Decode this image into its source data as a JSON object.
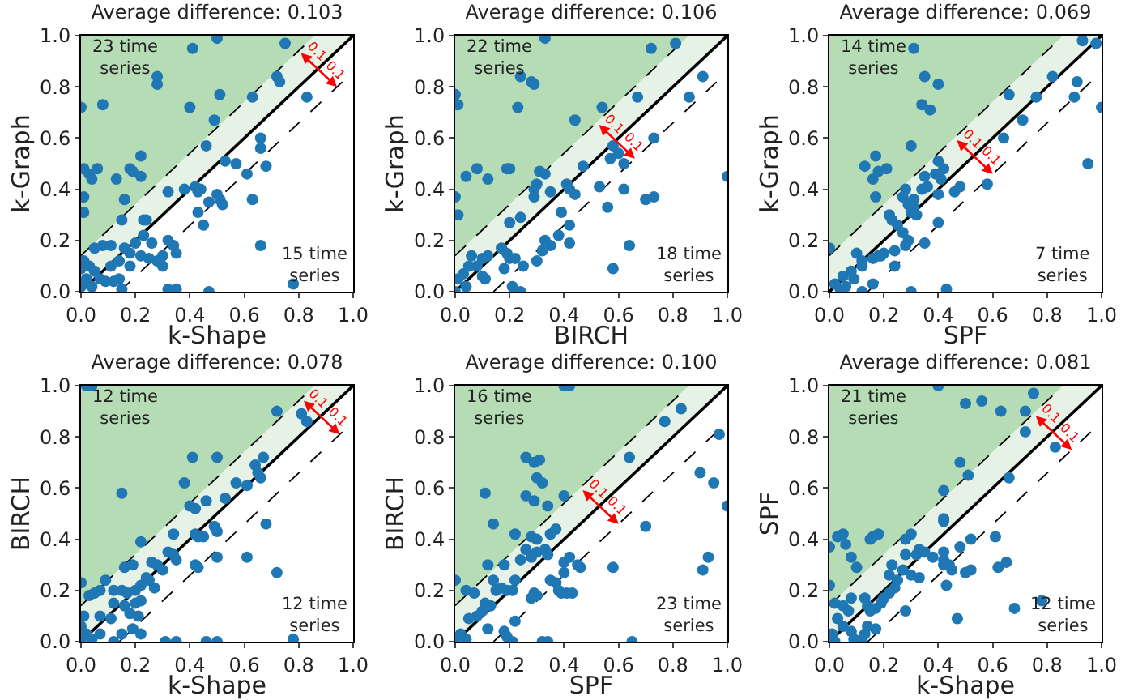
{
  "chart_data": [
    {
      "type": "scatter",
      "title": "Average difference: 0.103",
      "xlabel": "k-Shape",
      "ylabel": "k-Graph",
      "xlim": [
        0,
        1
      ],
      "ylim": [
        0,
        1
      ],
      "xticks": [
        {
          "value": 0,
          "label": "0.0"
        },
        {
          "value": 0.2,
          "label": "0.2"
        },
        {
          "value": 0.4,
          "label": "0.4"
        },
        {
          "value": 0.6,
          "label": "0.6"
        },
        {
          "value": 0.8,
          "label": "0.8"
        },
        {
          "value": 1,
          "label": "1.0"
        }
      ],
      "yticks": [
        {
          "value": 0,
          "label": "0.0"
        },
        {
          "value": 0.2,
          "label": "0.2"
        },
        {
          "value": 0.4,
          "label": "0.4"
        },
        {
          "value": 0.6,
          "label": "0.6"
        },
        {
          "value": 0.8,
          "label": "0.8"
        },
        {
          "value": 1,
          "label": "1.0"
        }
      ],
      "grid": false,
      "annotations": [
        "23 time\nseries",
        "15 time\nseries",
        {
          "text": "0.1",
          "x": 0.87,
          "y": 0.87
        },
        "0.1"
      ],
      "series": [
        {
          "type": "line",
          "color": "#000000",
          "line_style": "dashed",
          "marker": "none",
          "x": [
            0,
            0.859
          ],
          "values": [
            0.141,
            1
          ]
        },
        {
          "type": "line",
          "color": "#000000",
          "line_style": "dashed",
          "marker": "none",
          "x": [
            0.141,
            1
          ],
          "values": [
            0,
            0.859
          ]
        },
        {
          "type": "line",
          "color": "#000000",
          "line_style": "solid",
          "marker": "none",
          "x": [
            0,
            1
          ],
          "values": [
            0,
            1
          ]
        },
        {
          "type": "scatter",
          "color": "#1f77b4",
          "marker": "circle",
          "x": [
            0.5,
            0.75,
            0.41,
            0.28,
            0.28,
            0.72,
            0.73,
            0.83,
            0.51,
            0.63,
            0.0,
            0.08,
            0.4,
            0.49,
            0.66,
            0.46,
            0.22,
            0.66,
            0.57,
            0.53,
            0.68,
            0.61,
            0.01,
            0.06,
            0.03,
            0.04,
            0.13,
            0.18,
            0.19,
            0.22,
            0.01,
            0.16,
            0.32,
            0.38,
            0.42,
            0.44,
            0.43,
            0.5,
            0.51,
            0.47,
            0.52,
            0.63,
            0.43,
            0.45,
            0.01,
            0.15,
            0.23,
            0.24,
            0.23,
            0.32,
            0.34,
            0.35,
            0.3,
            0.25,
            0.2,
            0.05,
            0.08,
            0.11,
            0.16,
            0.18,
            0.22,
            0.26,
            0.28,
            0.3,
            0.14,
            0.18,
            0.01,
            0.03,
            0.05,
            0.07,
            0.02,
            0.0,
            0.04,
            0.09,
            0.12,
            0.15,
            0.11,
            0.66,
            0.78,
            0.32,
            0.35,
            0.47,
            0.14,
            0.0
          ],
          "values": [
            0.99,
            0.97,
            0.95,
            0.84,
            0.81,
            0.84,
            0.82,
            0.76,
            0.77,
            0.76,
            0.72,
            0.73,
            0.72,
            0.67,
            0.6,
            0.57,
            0.53,
            0.56,
            0.5,
            0.51,
            0.49,
            0.46,
            0.48,
            0.48,
            0.46,
            0.44,
            0.44,
            0.48,
            0.47,
            0.45,
            0.37,
            0.36,
            0.39,
            0.4,
            0.41,
            0.4,
            0.39,
            0.38,
            0.36,
            0.35,
            0.34,
            0.36,
            0.31,
            0.26,
            0.31,
            0.28,
            0.28,
            0.28,
            0.22,
            0.2,
            0.18,
            0.15,
            0.14,
            0.13,
            0.19,
            0.17,
            0.18,
            0.18,
            0.17,
            0.15,
            0.14,
            0.19,
            0.12,
            0.1,
            0.12,
            0.1,
            0.12,
            0.1,
            0.08,
            0.05,
            0.05,
            0.02,
            0.02,
            0.04,
            0.04,
            0.01,
            0.1,
            0.18,
            0.03,
            0.01,
            0.01,
            0.0,
            0.05,
            0.09
          ]
        }
      ]
    },
    {
      "type": "scatter",
      "title": "Average difference: 0.106",
      "xlabel": "BIRCH",
      "ylabel": "k-Graph",
      "xlim": [
        0,
        1
      ],
      "ylim": [
        0,
        1
      ],
      "xticks": [
        {
          "value": 0,
          "label": "0.0"
        },
        {
          "value": 0.2,
          "label": "0.2"
        },
        {
          "value": 0.4,
          "label": "0.4"
        },
        {
          "value": 0.6,
          "label": "0.6"
        },
        {
          "value": 0.8,
          "label": "0.8"
        },
        {
          "value": 1,
          "label": "1.0"
        }
      ],
      "yticks": [
        {
          "value": 0,
          "label": "0.0"
        },
        {
          "value": 0.2,
          "label": "0.2"
        },
        {
          "value": 0.4,
          "label": "0.4"
        },
        {
          "value": 0.6,
          "label": "0.6"
        },
        {
          "value": 0.8,
          "label": "0.8"
        },
        {
          "value": 1,
          "label": "1.0"
        }
      ],
      "grid": false,
      "annotations": [
        "22 time\nseries",
        "18 time\nseries",
        {
          "text": "0.1",
          "x": 0.59,
          "y": 0.59
        },
        "0.1"
      ],
      "series": [
        {
          "type": "line",
          "color": "#000000",
          "line_style": "dashed",
          "marker": "none",
          "x": [
            0,
            0.859
          ],
          "values": [
            0.141,
            1
          ]
        },
        {
          "type": "line",
          "color": "#000000",
          "line_style": "dashed",
          "marker": "none",
          "x": [
            0.141,
            1
          ],
          "values": [
            0,
            0.859
          ]
        },
        {
          "type": "line",
          "color": "#000000",
          "line_style": "solid",
          "marker": "none",
          "x": [
            0,
            1
          ],
          "values": [
            0,
            1
          ]
        },
        {
          "type": "scatter",
          "color": "#1f77b4",
          "marker": "circle",
          "x": [
            0.33,
            0.81,
            0.72,
            0.24,
            0.28,
            0.29,
            0.91,
            0.86,
            0.67,
            0.0,
            0.01,
            0.23,
            0.54,
            0.44,
            0.58,
            0.73,
            0.6,
            0.62,
            0.57,
            0.47,
            0.08,
            0.19,
            0.2,
            0.04,
            0.12,
            0.31,
            0.33,
            0.3,
            0.29,
            0.29,
            0.35,
            0.41,
            0.42,
            0.44,
            0.53,
            0.56,
            0.62,
            0.7,
            0.73,
            1.0,
            0.0,
            0.01,
            0.39,
            0.42,
            0.38,
            0.42,
            0.64,
            0.2,
            0.24,
            0.33,
            0.35,
            0.32,
            0.3,
            0.25,
            0.17,
            0.19,
            0.2,
            0.22,
            0.18,
            0.06,
            0.1,
            0.12,
            0.05,
            0.03,
            0.01,
            0.1,
            0.11,
            0.04,
            0.0,
            0.21,
            0.24,
            0.58,
            0.08
          ],
          "values": [
            0.99,
            0.97,
            0.95,
            0.84,
            0.82,
            0.81,
            0.84,
            0.76,
            0.76,
            0.77,
            0.73,
            0.72,
            0.72,
            0.67,
            0.57,
            0.6,
            0.54,
            0.5,
            0.52,
            0.49,
            0.48,
            0.48,
            0.48,
            0.45,
            0.44,
            0.47,
            0.46,
            0.42,
            0.4,
            0.37,
            0.39,
            0.42,
            0.4,
            0.38,
            0.41,
            0.33,
            0.4,
            0.36,
            0.37,
            0.45,
            0.37,
            0.3,
            0.31,
            0.26,
            0.22,
            0.19,
            0.18,
            0.27,
            0.29,
            0.2,
            0.18,
            0.16,
            0.12,
            0.1,
            0.17,
            0.15,
            0.13,
            0.13,
            0.09,
            0.14,
            0.13,
            0.14,
            0.1,
            0.07,
            0.05,
            0.06,
            0.05,
            0.02,
            0.0,
            0.02,
            0.0,
            0.09,
            0.1
          ]
        }
      ]
    },
    {
      "type": "scatter",
      "title": "Average difference: 0.069",
      "xlabel": "SPF",
      "ylabel": "k-Graph",
      "xlim": [
        0,
        1
      ],
      "ylim": [
        0,
        1
      ],
      "xticks": [
        {
          "value": 0,
          "label": "0.0"
        },
        {
          "value": 0.2,
          "label": "0.2"
        },
        {
          "value": 0.4,
          "label": "0.4"
        },
        {
          "value": 0.6,
          "label": "0.6"
        },
        {
          "value": 0.8,
          "label": "0.8"
        },
        {
          "value": 1,
          "label": "1.0"
        }
      ],
      "yticks": [
        {
          "value": 0,
          "label": "0.0"
        },
        {
          "value": 0.2,
          "label": "0.2"
        },
        {
          "value": 0.4,
          "label": "0.4"
        },
        {
          "value": 0.6,
          "label": "0.6"
        },
        {
          "value": 0.8,
          "label": "0.8"
        },
        {
          "value": 1,
          "label": "1.0"
        }
      ],
      "grid": false,
      "annotations": [
        "14 time\nseries",
        "7 time\nseries",
        {
          "text": "0.1",
          "x": 0.53,
          "y": 0.53
        },
        "0.1"
      ],
      "series": [
        {
          "type": "line",
          "color": "#000000",
          "line_style": "dashed",
          "marker": "none",
          "x": [
            0,
            0.859
          ],
          "values": [
            0.141,
            1
          ]
        },
        {
          "type": "line",
          "color": "#000000",
          "line_style": "dashed",
          "marker": "none",
          "x": [
            0.141,
            1
          ],
          "values": [
            0,
            0.859
          ]
        },
        {
          "type": "line",
          "color": "#000000",
          "line_style": "solid",
          "marker": "none",
          "x": [
            0,
            1
          ],
          "values": [
            0,
            1
          ]
        },
        {
          "type": "scatter",
          "color": "#1f77b4",
          "marker": "circle",
          "x": [
            0.31,
            0.93,
            0.98,
            0.35,
            0.4,
            0.82,
            0.91,
            0.9,
            0.76,
            0.66,
            0.34,
            0.37,
            0.71,
            1.0,
            0.64,
            0.3,
            0.17,
            0.13,
            0.18,
            0.16,
            0.21,
            0.4,
            0.42,
            0.39,
            0.41,
            0.35,
            0.34,
            0.36,
            0.4,
            0.46,
            0.48,
            0.58,
            0.95,
            0.17,
            0.28,
            0.27,
            0.29,
            0.3,
            0.31,
            0.31,
            0.22,
            0.23,
            0.25,
            0.32,
            0.4,
            0.35,
            0.27,
            0.29,
            0.28,
            0.24,
            0.2,
            0.18,
            0.16,
            0.19,
            0.0,
            0.1,
            0.12,
            0.08,
            0.05,
            0.02,
            0.04,
            0.09,
            0.12,
            0.16,
            0.24,
            0.3,
            0.43,
            0.12,
            0.06
          ],
          "values": [
            0.95,
            0.98,
            0.97,
            0.84,
            0.81,
            0.84,
            0.82,
            0.76,
            0.76,
            0.77,
            0.73,
            0.71,
            0.67,
            0.72,
            0.6,
            0.57,
            0.53,
            0.49,
            0.47,
            0.44,
            0.48,
            0.51,
            0.48,
            0.46,
            0.44,
            0.45,
            0.4,
            0.41,
            0.38,
            0.39,
            0.41,
            0.42,
            0.5,
            0.37,
            0.4,
            0.37,
            0.34,
            0.31,
            0.33,
            0.36,
            0.3,
            0.28,
            0.26,
            0.3,
            0.27,
            0.19,
            0.23,
            0.2,
            0.18,
            0.16,
            0.15,
            0.14,
            0.13,
            0.14,
            0.17,
            0.15,
            0.12,
            0.08,
            0.06,
            0.03,
            0.01,
            0.05,
            0.1,
            0.03,
            0.1,
            0.0,
            0.01,
            0.0,
            0.02
          ]
        }
      ]
    },
    {
      "type": "scatter",
      "title": "Average difference: 0.078",
      "xlabel": "k-Shape",
      "ylabel": "BIRCH",
      "xlim": [
        0,
        1
      ],
      "ylim": [
        0,
        1
      ],
      "xticks": [
        {
          "value": 0,
          "label": "0.0"
        },
        {
          "value": 0.2,
          "label": "0.2"
        },
        {
          "value": 0.4,
          "label": "0.4"
        },
        {
          "value": 0.6,
          "label": "0.6"
        },
        {
          "value": 0.8,
          "label": "0.8"
        },
        {
          "value": 1,
          "label": "1.0"
        }
      ],
      "yticks": [
        {
          "value": 0,
          "label": "0.0"
        },
        {
          "value": 0.2,
          "label": "0.2"
        },
        {
          "value": 0.4,
          "label": "0.4"
        },
        {
          "value": 0.6,
          "label": "0.6"
        },
        {
          "value": 0.8,
          "label": "0.8"
        },
        {
          "value": 1,
          "label": "1.0"
        }
      ],
      "grid": false,
      "annotations": [
        "12 time\nseries",
        "12 time\nseries",
        {
          "text": "0.1",
          "x": 0.88,
          "y": 0.88
        },
        "0.1"
      ],
      "series": [
        {
          "type": "line",
          "color": "#000000",
          "line_style": "dashed",
          "marker": "none",
          "x": [
            0,
            0.859
          ],
          "values": [
            0.141,
            1
          ]
        },
        {
          "type": "line",
          "color": "#000000",
          "line_style": "dashed",
          "marker": "none",
          "x": [
            0.141,
            1
          ],
          "values": [
            0,
            0.859
          ]
        },
        {
          "type": "line",
          "color": "#000000",
          "line_style": "solid",
          "marker": "none",
          "x": [
            0,
            1
          ],
          "values": [
            0,
            1
          ]
        },
        {
          "type": "scatter",
          "color": "#1f77b4",
          "marker": "circle",
          "x": [
            0.02,
            0.04,
            0.72,
            0.83,
            0.81,
            0.41,
            0.5,
            0.64,
            0.67,
            0.65,
            0.66,
            0.38,
            0.57,
            0.61,
            0.15,
            0.4,
            0.42,
            0.46,
            0.53,
            0.68,
            0.49,
            0.5,
            0.34,
            0.42,
            0.45,
            0.43,
            0.22,
            0.32,
            0.34,
            0.35,
            0.26,
            0.28,
            0.3,
            0.42,
            0.43,
            0.5,
            0.61,
            0.72,
            0.16,
            0.19,
            0.24,
            0.27,
            0.25,
            0.22,
            0.2,
            0.17,
            0.15,
            0.12,
            0.09,
            0.07,
            0.05,
            0.0,
            0.03,
            0.12,
            0.16,
            0.2,
            0.22,
            0.18,
            0.21,
            0.11,
            0.07,
            0.01,
            0.0,
            0.02,
            0.04,
            0.07,
            0.15,
            0.19,
            0.22,
            0.31,
            0.35,
            0.46,
            0.5,
            0.78,
            0.0,
            0.12
          ],
          "values": [
            1.0,
            1.0,
            0.9,
            0.86,
            0.89,
            0.72,
            0.72,
            0.69,
            0.72,
            0.66,
            0.64,
            0.62,
            0.62,
            0.61,
            0.58,
            0.53,
            0.52,
            0.55,
            0.56,
            0.46,
            0.45,
            0.43,
            0.42,
            0.42,
            0.41,
            0.41,
            0.39,
            0.35,
            0.34,
            0.32,
            0.31,
            0.3,
            0.28,
            0.3,
            0.29,
            0.33,
            0.33,
            0.27,
            0.29,
            0.3,
            0.25,
            0.21,
            0.24,
            0.22,
            0.2,
            0.19,
            0.2,
            0.2,
            0.24,
            0.2,
            0.19,
            0.23,
            0.18,
            0.15,
            0.14,
            0.15,
            0.16,
            0.11,
            0.1,
            0.09,
            0.1,
            0.1,
            0.06,
            0.03,
            0.01,
            0.03,
            0.03,
            0.05,
            0.03,
            0.0,
            0.0,
            0.0,
            0.0,
            0.01,
            0.0,
            0.0
          ]
        }
      ]
    },
    {
      "type": "scatter",
      "title": "Average difference: 0.100",
      "xlabel": "SPF",
      "ylabel": "BIRCH",
      "xlim": [
        0,
        1
      ],
      "ylim": [
        0,
        1
      ],
      "xticks": [
        {
          "value": 0,
          "label": "0.0"
        },
        {
          "value": 0.2,
          "label": "0.2"
        },
        {
          "value": 0.4,
          "label": "0.4"
        },
        {
          "value": 0.6,
          "label": "0.6"
        },
        {
          "value": 0.8,
          "label": "0.8"
        },
        {
          "value": 1,
          "label": "1.0"
        }
      ],
      "yticks": [
        {
          "value": 0,
          "label": "0.0"
        },
        {
          "value": 0.2,
          "label": "0.2"
        },
        {
          "value": 0.4,
          "label": "0.4"
        },
        {
          "value": 0.6,
          "label": "0.6"
        },
        {
          "value": 0.8,
          "label": "0.8"
        },
        {
          "value": 1,
          "label": "1.0"
        }
      ],
      "grid": false,
      "annotations": [
        "16 time\nseries",
        "23 time\nseries",
        {
          "text": "0.1",
          "x": 0.53,
          "y": 0.53
        },
        "0.1"
      ],
      "series": [
        {
          "type": "line",
          "color": "#000000",
          "line_style": "dashed",
          "marker": "none",
          "x": [
            0,
            0.859
          ],
          "values": [
            0.141,
            1
          ]
        },
        {
          "type": "line",
          "color": "#000000",
          "line_style": "dashed",
          "marker": "none",
          "x": [
            0.141,
            1
          ],
          "values": [
            0,
            0.859
          ]
        },
        {
          "type": "line",
          "color": "#000000",
          "line_style": "solid",
          "marker": "none",
          "x": [
            0,
            1
          ],
          "values": [
            0,
            1
          ]
        },
        {
          "type": "scatter",
          "color": "#1f77b4",
          "marker": "circle",
          "x": [
            0.4,
            0.42,
            0.83,
            0.77,
            0.64,
            0.97,
            0.9,
            0.95,
            1.0,
            0.26,
            0.29,
            0.31,
            0.3,
            0.32,
            0.11,
            0.26,
            0.29,
            0.34,
            0.4,
            0.14,
            0.22,
            0.28,
            0.3,
            0.35,
            0.37,
            0.7,
            0.26,
            0.3,
            0.33,
            0.34,
            0.24,
            0.28,
            0.42,
            0.4,
            0.45,
            0.46,
            0.58,
            0.93,
            0.91,
            0.12,
            0.18,
            0.14,
            0.0,
            0.04,
            0.07,
            0.15,
            0.17,
            0.19,
            0.21,
            0.22,
            0.29,
            0.3,
            0.28,
            0.35,
            0.37,
            0.39,
            0.41,
            0.43,
            0.38,
            0.4,
            0.11,
            0.13,
            0.08,
            0.1,
            0.05,
            0.02,
            0.04,
            0.0,
            0.12,
            0.18,
            0.19,
            0.22,
            0.21,
            0.32,
            0.34,
            0.65
          ],
          "values": [
            1.0,
            1.0,
            0.91,
            0.86,
            0.72,
            0.81,
            0.66,
            0.62,
            0.53,
            0.72,
            0.7,
            0.71,
            0.64,
            0.62,
            0.58,
            0.57,
            0.55,
            0.53,
            0.57,
            0.46,
            0.42,
            0.41,
            0.4,
            0.42,
            0.44,
            0.45,
            0.36,
            0.35,
            0.36,
            0.34,
            0.32,
            0.33,
            0.33,
            0.31,
            0.3,
            0.29,
            0.29,
            0.33,
            0.28,
            0.3,
            0.3,
            0.24,
            0.24,
            0.2,
            0.19,
            0.2,
            0.21,
            0.2,
            0.2,
            0.24,
            0.19,
            0.18,
            0.17,
            0.24,
            0.23,
            0.19,
            0.19,
            0.19,
            0.2,
            0.27,
            0.15,
            0.14,
            0.1,
            0.12,
            0.09,
            0.03,
            0.01,
            0.0,
            0.05,
            0.04,
            0.02,
            0.08,
            0.0,
            0.0,
            0.0,
            0.0
          ]
        }
      ]
    },
    {
      "type": "scatter",
      "title": "Average difference: 0.081",
      "xlabel": "k-Shape",
      "ylabel": "SPF",
      "xlim": [
        0,
        1
      ],
      "ylim": [
        0,
        1
      ],
      "xticks": [
        {
          "value": 0,
          "label": "0.0"
        },
        {
          "value": 0.2,
          "label": "0.2"
        },
        {
          "value": 0.4,
          "label": "0.4"
        },
        {
          "value": 0.6,
          "label": "0.6"
        },
        {
          "value": 0.8,
          "label": "0.8"
        },
        {
          "value": 1,
          "label": "1.0"
        }
      ],
      "yticks": [
        {
          "value": 0,
          "label": "0.0"
        },
        {
          "value": 0.2,
          "label": "0.2"
        },
        {
          "value": 0.4,
          "label": "0.4"
        },
        {
          "value": 0.6,
          "label": "0.6"
        },
        {
          "value": 0.8,
          "label": "0.8"
        },
        {
          "value": 1,
          "label": "1.0"
        }
      ],
      "grid": false,
      "annotations": [
        "21 time\nseries",
        "12 time\nseries",
        {
          "text": "0.1",
          "x": 0.82,
          "y": 0.82
        },
        "0.1"
      ],
      "series": [
        {
          "type": "line",
          "color": "#000000",
          "line_style": "dashed",
          "marker": "none",
          "x": [
            0,
            0.859
          ],
          "values": [
            0.141,
            1
          ]
        },
        {
          "type": "line",
          "color": "#000000",
          "line_style": "dashed",
          "marker": "none",
          "x": [
            0.141,
            1
          ],
          "values": [
            0,
            0.859
          ]
        },
        {
          "type": "line",
          "color": "#000000",
          "line_style": "solid",
          "marker": "none",
          "x": [
            0,
            1
          ],
          "values": [
            0,
            1
          ]
        },
        {
          "type": "scatter",
          "color": "#1f77b4",
          "marker": "circle",
          "x": [
            0.4,
            0.75,
            0.5,
            0.56,
            0.63,
            0.72,
            0.72,
            0.83,
            0.48,
            0.51,
            0.66,
            0.42,
            0.42,
            0.42,
            0.0,
            0.03,
            0.05,
            0.06,
            0.08,
            0.1,
            0.15,
            0.16,
            0.18,
            0.3,
            0.28,
            0.28,
            0.32,
            0.33,
            0.35,
            0.38,
            0.42,
            0.42,
            0.44,
            0.45,
            0.42,
            0.48,
            0.5,
            0.52,
            0.52,
            0.61,
            0.62,
            0.65,
            0.23,
            0.22,
            0.25,
            0.27,
            0.3,
            0.33,
            0.24,
            0.22,
            0.2,
            0.19,
            0.17,
            0.15,
            0.14,
            0.13,
            0.28,
            0.43,
            0.47,
            0.68,
            0.78,
            0.0,
            0.02,
            0.05,
            0.07,
            0.03,
            0.05,
            0.08,
            0.01,
            0.02,
            0.09,
            0.13,
            0.14,
            0.17,
            0.12,
            0.08
          ],
          "values": [
            1.0,
            0.97,
            0.93,
            0.94,
            0.9,
            0.9,
            0.82,
            0.76,
            0.7,
            0.65,
            0.64,
            0.59,
            0.48,
            0.47,
            0.37,
            0.41,
            0.42,
            0.38,
            0.33,
            0.29,
            0.4,
            0.41,
            0.42,
            0.42,
            0.4,
            0.34,
            0.34,
            0.36,
            0.35,
            0.33,
            0.35,
            0.32,
            0.3,
            0.28,
            0.3,
            0.37,
            0.27,
            0.28,
            0.4,
            0.41,
            0.29,
            0.31,
            0.3,
            0.26,
            0.24,
            0.28,
            0.26,
            0.25,
            0.21,
            0.19,
            0.17,
            0.15,
            0.13,
            0.12,
            0.14,
            0.17,
            0.12,
            0.22,
            0.09,
            0.13,
            0.16,
            0.22,
            0.15,
            0.14,
            0.12,
            0.09,
            0.06,
            0.04,
            0.03,
            0.0,
            0.01,
            0.03,
            0.06,
            0.05,
            0.01,
            0.17
          ]
        }
      ]
    }
  ]
}
